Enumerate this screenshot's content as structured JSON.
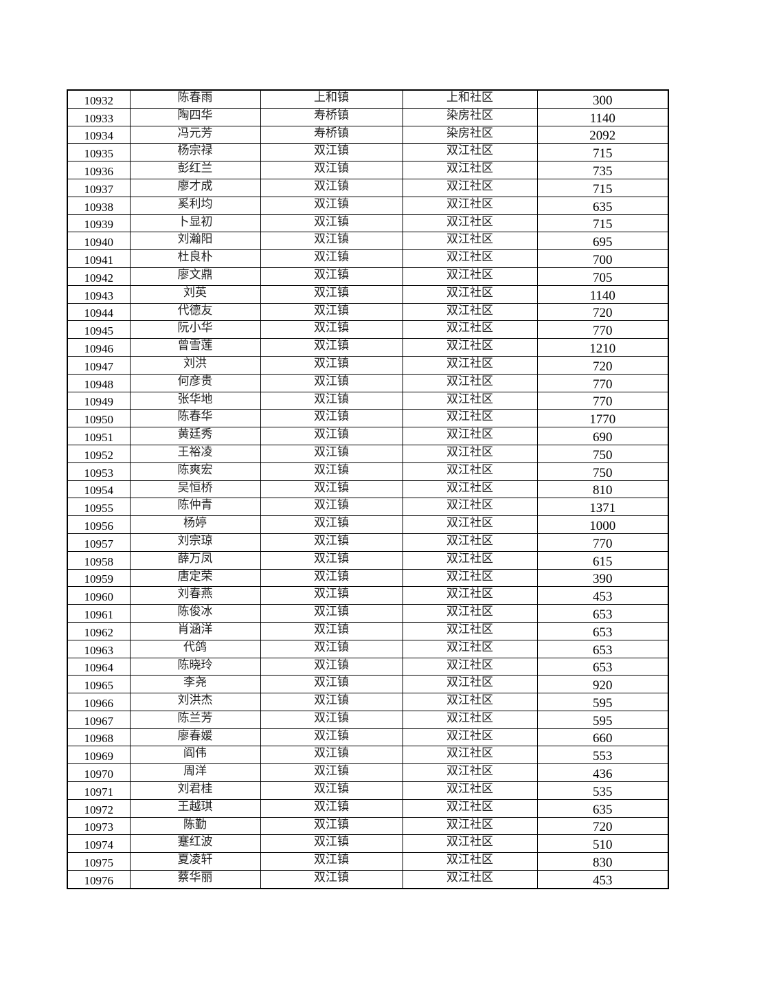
{
  "table": {
    "rows": [
      [
        "10932",
        "陈春雨",
        "上和镇",
        "上和社区",
        "300"
      ],
      [
        "10933",
        "陶四华",
        "寿桥镇",
        "染房社区",
        "1140"
      ],
      [
        "10934",
        "冯元芳",
        "寿桥镇",
        "染房社区",
        "2092"
      ],
      [
        "10935",
        "杨宗禄",
        "双江镇",
        "双江社区",
        "715"
      ],
      [
        "10936",
        "彭红兰",
        "双江镇",
        "双江社区",
        "735"
      ],
      [
        "10937",
        "廖才成",
        "双江镇",
        "双江社区",
        "715"
      ],
      [
        "10938",
        "奚利均",
        "双江镇",
        "双江社区",
        "635"
      ],
      [
        "10939",
        "卜显初",
        "双江镇",
        "双江社区",
        "715"
      ],
      [
        "10940",
        "刘瀚阳",
        "双江镇",
        "双江社区",
        "695"
      ],
      [
        "10941",
        "杜良朴",
        "双江镇",
        "双江社区",
        "700"
      ],
      [
        "10942",
        "廖文鼎",
        "双江镇",
        "双江社区",
        "705"
      ],
      [
        "10943",
        "刘英",
        "双江镇",
        "双江社区",
        "1140"
      ],
      [
        "10944",
        "代德友",
        "双江镇",
        "双江社区",
        "720"
      ],
      [
        "10945",
        "阮小华",
        "双江镇",
        "双江社区",
        "770"
      ],
      [
        "10946",
        "曾雪莲",
        "双江镇",
        "双江社区",
        "1210"
      ],
      [
        "10947",
        "刘洪",
        "双江镇",
        "双江社区",
        "720"
      ],
      [
        "10948",
        "何彦贵",
        "双江镇",
        "双江社区",
        "770"
      ],
      [
        "10949",
        "张华地",
        "双江镇",
        "双江社区",
        "770"
      ],
      [
        "10950",
        "陈春华",
        "双江镇",
        "双江社区",
        "1770"
      ],
      [
        "10951",
        "黄廷秀",
        "双江镇",
        "双江社区",
        "690"
      ],
      [
        "10952",
        "王裕凌",
        "双江镇",
        "双江社区",
        "750"
      ],
      [
        "10953",
        "陈爽宏",
        "双江镇",
        "双江社区",
        "750"
      ],
      [
        "10954",
        "吴恒桥",
        "双江镇",
        "双江社区",
        "810"
      ],
      [
        "10955",
        "陈仲青",
        "双江镇",
        "双江社区",
        "1371"
      ],
      [
        "10956",
        "杨婷",
        "双江镇",
        "双江社区",
        "1000"
      ],
      [
        "10957",
        "刘宗琼",
        "双江镇",
        "双江社区",
        "770"
      ],
      [
        "10958",
        "薛万凤",
        "双江镇",
        "双江社区",
        "615"
      ],
      [
        "10959",
        "唐定荣",
        "双江镇",
        "双江社区",
        "390"
      ],
      [
        "10960",
        "刘春燕",
        "双江镇",
        "双江社区",
        "453"
      ],
      [
        "10961",
        "陈俊冰",
        "双江镇",
        "双江社区",
        "653"
      ],
      [
        "10962",
        "肖涵洋",
        "双江镇",
        "双江社区",
        "653"
      ],
      [
        "10963",
        "代鸽",
        "双江镇",
        "双江社区",
        "653"
      ],
      [
        "10964",
        "陈晓玲",
        "双江镇",
        "双江社区",
        "653"
      ],
      [
        "10965",
        "李尧",
        "双江镇",
        "双江社区",
        "920"
      ],
      [
        "10966",
        "刘洪杰",
        "双江镇",
        "双江社区",
        "595"
      ],
      [
        "10967",
        "陈兰芳",
        "双江镇",
        "双江社区",
        "595"
      ],
      [
        "10968",
        "廖春媛",
        "双江镇",
        "双江社区",
        "660"
      ],
      [
        "10969",
        "阎伟",
        "双江镇",
        "双江社区",
        "553"
      ],
      [
        "10970",
        "周洋",
        "双江镇",
        "双江社区",
        "436"
      ],
      [
        "10971",
        "刘君桂",
        "双江镇",
        "双江社区",
        "535"
      ],
      [
        "10972",
        "王越琪",
        "双江镇",
        "双江社区",
        "635"
      ],
      [
        "10973",
        "陈勤",
        "双江镇",
        "双江社区",
        "720"
      ],
      [
        "10974",
        "蹇红波",
        "双江镇",
        "双江社区",
        "510"
      ],
      [
        "10975",
        "夏凌轩",
        "双江镇",
        "双江社区",
        "830"
      ],
      [
        "10976",
        "蔡华丽",
        "双江镇",
        "双江社区",
        "453"
      ]
    ]
  }
}
